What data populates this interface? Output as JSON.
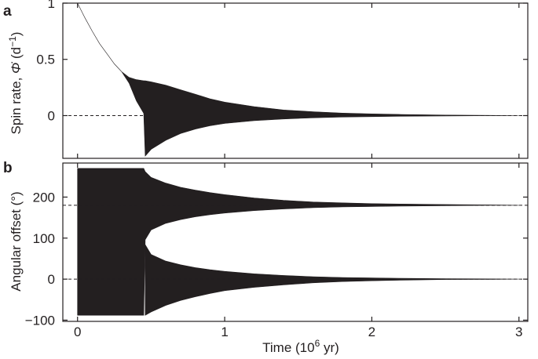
{
  "chart_data": [
    {
      "panel": "a",
      "type": "area",
      "xlabel": "",
      "ylabel": "Spin rate, Φ̇ (d⁻¹)",
      "ylabel_parts": {
        "main": "Spin rate, ",
        "symbol": "Φ̇",
        "unit_open": " (d",
        "unit_exp": "−1",
        "unit_close": ")"
      },
      "xlim": [
        -0.1,
        3.06
      ],
      "ylim": [
        -0.38,
        1.0
      ],
      "xticks": [
        0,
        1,
        2,
        3
      ],
      "yticks": [
        0,
        0.5,
        1
      ],
      "ytick_labels": [
        "0",
        "0.5",
        "1"
      ],
      "reference_line": {
        "y": 0,
        "style": "dashed"
      },
      "envelope": {
        "x": [
          0.0,
          0.05,
          0.1,
          0.15,
          0.2,
          0.25,
          0.3,
          0.35,
          0.4,
          0.45,
          0.46,
          0.5,
          0.6,
          0.7,
          0.8,
          0.9,
          1.0,
          1.2,
          1.4,
          1.6,
          1.8,
          2.0,
          2.2,
          2.5,
          2.8,
          3.0
        ],
        "upper": [
          1.0,
          0.87,
          0.75,
          0.64,
          0.55,
          0.46,
          0.39,
          0.34,
          0.32,
          0.31,
          0.31,
          0.3,
          0.27,
          0.23,
          0.19,
          0.15,
          0.12,
          0.08,
          0.05,
          0.035,
          0.022,
          0.015,
          0.01,
          0.005,
          0.002,
          0.0
        ],
        "lower": [
          1.0,
          0.87,
          0.75,
          0.64,
          0.55,
          0.46,
          0.39,
          0.29,
          0.13,
          0.02,
          -0.36,
          -0.3,
          -0.22,
          -0.16,
          -0.12,
          -0.09,
          -0.07,
          -0.045,
          -0.03,
          -0.02,
          -0.013,
          -0.009,
          -0.006,
          -0.003,
          -0.001,
          0.0
        ]
      },
      "color": "#231f20"
    },
    {
      "panel": "b",
      "type": "area",
      "xlabel": "Time (10⁶ yr)",
      "xlabel_parts": {
        "main": "Time (10",
        "exp": "6",
        "tail": " yr)"
      },
      "ylabel": "Angular offset (°)",
      "xlim": [
        -0.1,
        3.06
      ],
      "ylim": [
        -103,
        283
      ],
      "xticks": [
        0,
        1,
        2,
        3
      ],
      "yticks": [
        -100,
        0,
        100,
        200
      ],
      "ytick_labels": [
        "−100",
        "0",
        "100",
        "200"
      ],
      "reference_lines": [
        {
          "y": 180,
          "style": "dashed"
        },
        {
          "y": 0,
          "style": "dashed"
        }
      ],
      "upper_band": {
        "x": [
          0.0,
          0.45,
          0.46,
          0.5,
          0.6,
          0.7,
          0.8,
          0.9,
          1.0,
          1.2,
          1.4,
          1.6,
          1.8,
          2.0,
          2.2,
          2.5,
          2.8,
          3.0
        ],
        "upper": [
          270,
          270,
          262,
          248,
          234,
          224,
          217,
          211,
          206,
          198,
          192,
          188,
          186,
          184,
          183,
          182,
          181,
          180
        ],
        "lower": [
          -88,
          -88,
          96,
          120,
          136,
          145,
          152,
          157,
          161,
          167,
          171,
          174,
          176,
          177,
          178,
          179,
          180,
          180
        ]
      },
      "lower_band": {
        "x": [
          0.46,
          0.5,
          0.6,
          0.7,
          0.8,
          0.9,
          1.0,
          1.2,
          1.4,
          1.6,
          1.8,
          2.0,
          2.2,
          2.5,
          2.8,
          3.0
        ],
        "upper": [
          84,
          60,
          44,
          35,
          28,
          23,
          19,
          13,
          9,
          6,
          4,
          3,
          2,
          1,
          0.5,
          0
        ],
        "lower": [
          -88,
          -80,
          -64,
          -52,
          -43,
          -35,
          -28,
          -20,
          -14,
          -9,
          -6,
          -4,
          -2.5,
          -1,
          -0.5,
          0
        ]
      },
      "color": "#231f20"
    }
  ]
}
